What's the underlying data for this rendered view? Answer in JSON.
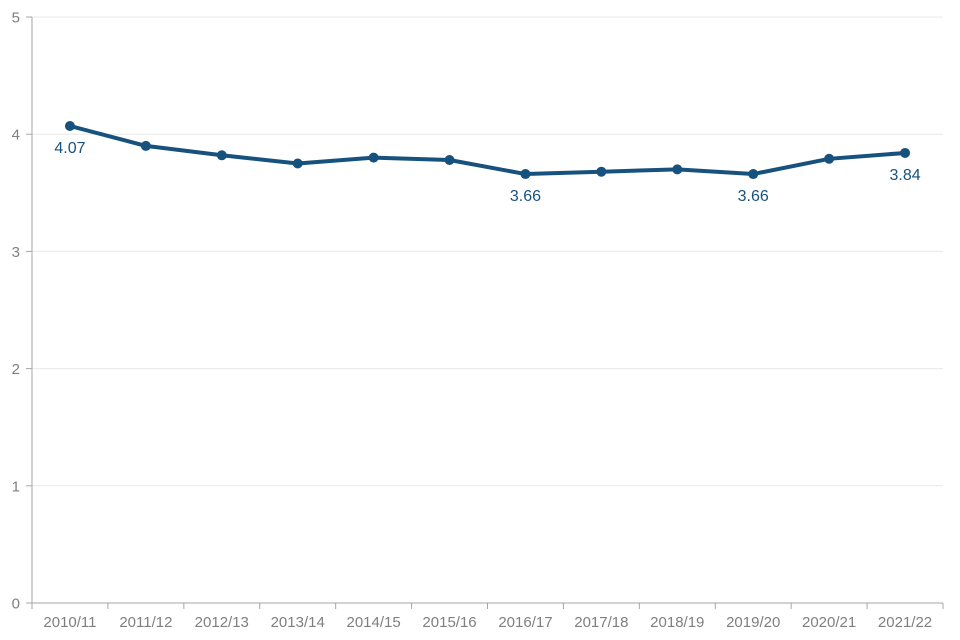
{
  "chart_data": {
    "type": "line",
    "title": "",
    "xlabel": "",
    "ylabel": "",
    "categories": [
      "2010/11",
      "2011/12",
      "2012/13",
      "2013/14",
      "2014/15",
      "2015/16",
      "2016/17",
      "2017/18",
      "2018/19",
      "2019/20",
      "2020/21",
      "2021/22"
    ],
    "series": [
      {
        "name": "value",
        "values": [
          4.07,
          3.9,
          3.82,
          3.75,
          3.8,
          3.78,
          3.66,
          3.68,
          3.7,
          3.66,
          3.79,
          3.84
        ]
      }
    ],
    "data_labels": [
      {
        "index": 0,
        "text": "4.07"
      },
      {
        "index": 6,
        "text": "3.66"
      },
      {
        "index": 9,
        "text": "3.66"
      },
      {
        "index": 11,
        "text": "3.84"
      }
    ],
    "ylim": [
      0,
      5
    ],
    "yticks": [
      "0",
      "1",
      "2",
      "3",
      "4",
      "5"
    ],
    "grid": "horizontal",
    "legend": "none",
    "colors": {
      "line": "#17517e",
      "marker": "#17517e",
      "data_label": "#17517e",
      "axis_line": "#a6a6a6",
      "tick_label": "#7f7f7f",
      "gridline": "#e8e8e8",
      "background": "#ffffff"
    }
  }
}
